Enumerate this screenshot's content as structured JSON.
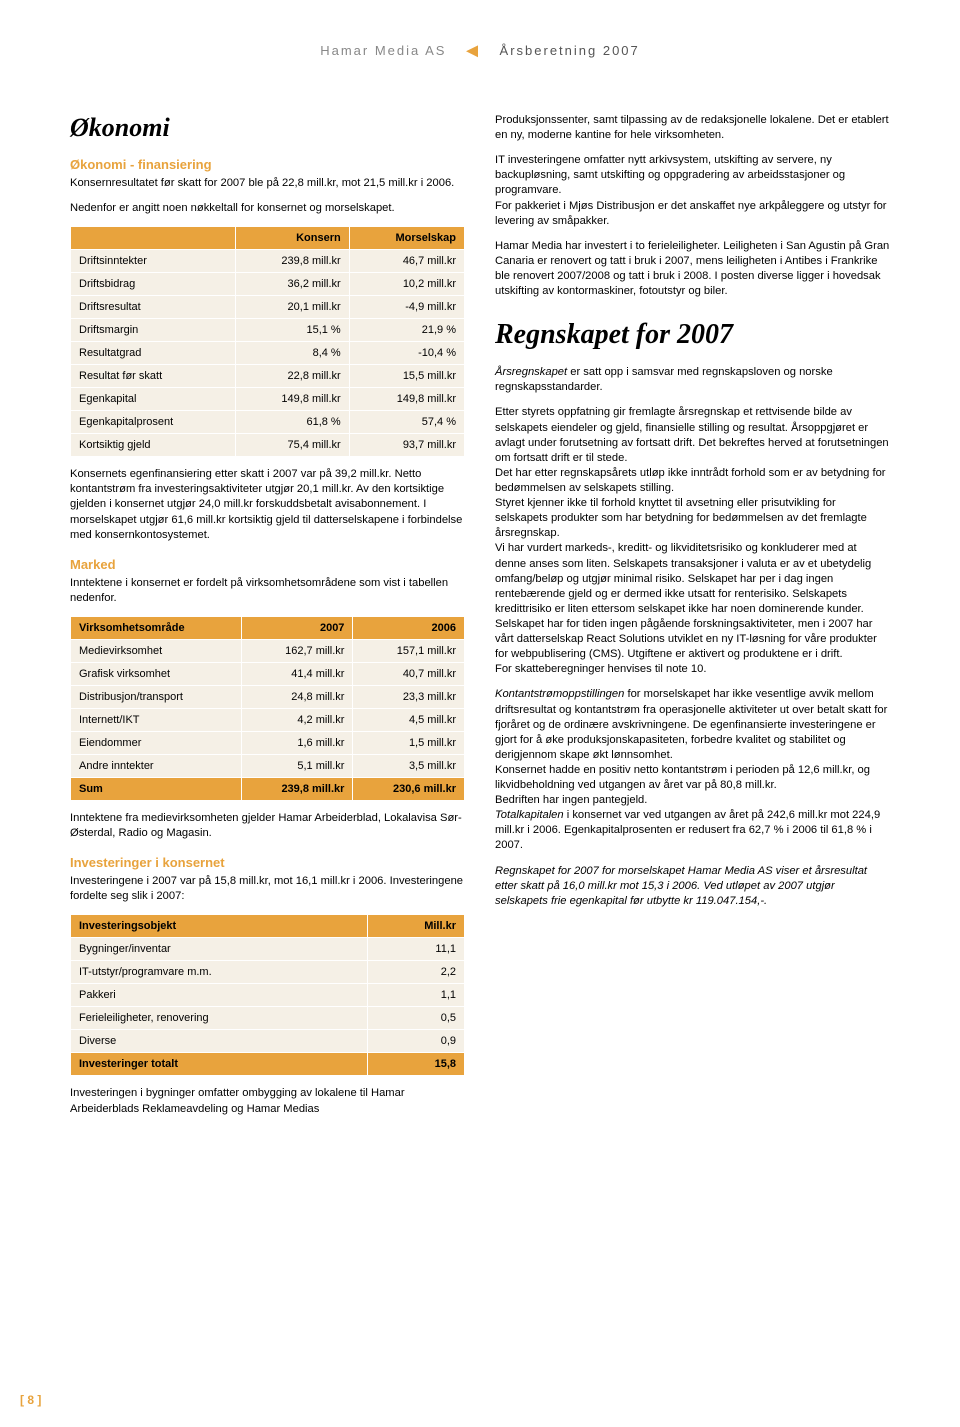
{
  "header": {
    "left": "Hamar Media AS",
    "right": "Årsberetning 2007"
  },
  "left": {
    "title": "Økonomi",
    "h_fin": "Økonomi - finansiering",
    "p1": "Konsernresultatet før skatt for 2007 ble på 22,8 mill.kr, mot 21,5 mill.kr i 2006.",
    "p2": "Nedenfor er angitt noen nøkkeltall for konsernet og morselskapet.",
    "tbl1": {
      "head": [
        "",
        "Konsern",
        "Morselskap"
      ],
      "rows": [
        [
          "Driftsinntekter",
          "239,8 mill.kr",
          "46,7 mill.kr"
        ],
        [
          "Driftsbidrag",
          "36,2 mill.kr",
          "10,2 mill.kr"
        ],
        [
          "Driftsresultat",
          "20,1 mill.kr",
          "-4,9 mill.kr"
        ],
        [
          "Driftsmargin",
          "15,1 %",
          "21,9 %"
        ],
        [
          "Resultatgrad",
          "8,4 %",
          "-10,4 %"
        ],
        [
          "Resultat før skatt",
          "22,8 mill.kr",
          "15,5 mill.kr"
        ],
        [
          "Egenkapital",
          "149,8 mill.kr",
          "149,8 mill.kr"
        ],
        [
          "Egenkapitalprosent",
          "61,8 %",
          "57,4 %"
        ],
        [
          "Kortsiktig gjeld",
          "75,4 mill.kr",
          "93,7 mill.kr"
        ]
      ]
    },
    "p3": "Konsernets egenfinansiering etter skatt i 2007 var på 39,2 mill.kr. Netto kontantstrøm fra investeringsaktiviteter utgjør 20,1 mill.kr. Av den kortsiktige gjelden i konsernet utgjør 24,0 mill.kr forskuddsbetalt avisabonnement. I morselskapet utgjør 61,6 mill.kr kortsiktig gjeld til datterselskapene i forbindelse med konsernkontosystemet.",
    "h_marked": "Marked",
    "p4": "Inntektene i konsernet er fordelt på virksomhetsområdene som vist i tabellen nedenfor.",
    "tbl2": {
      "head": [
        "Virksomhetsområde",
        "2007",
        "2006"
      ],
      "rows": [
        [
          "Medievirksomhet",
          "162,7 mill.kr",
          "157,1 mill.kr"
        ],
        [
          "Grafisk virksomhet",
          "41,4 mill.kr",
          "40,7 mill.kr"
        ],
        [
          "Distribusjon/transport",
          "24,8 mill.kr",
          "23,3 mill.kr"
        ],
        [
          "Internett/IKT",
          "4,2 mill.kr",
          "4,5 mill.kr"
        ],
        [
          "Eiendommer",
          "1,6 mill.kr",
          "1,5 mill.kr"
        ],
        [
          "Andre inntekter",
          "5,1 mill.kr",
          "3,5 mill.kr"
        ]
      ],
      "sum": [
        "Sum",
        "239,8 mill.kr",
        "230,6 mill.kr"
      ]
    },
    "p5": "Inntektene fra medievirksomheten gjelder Hamar Arbeiderblad, Lokalavisa Sør-Østerdal, Radio og Magasin.",
    "h_inv": "Investeringer i konsernet",
    "p6": "Investeringene i 2007 var på 15,8 mill.kr, mot 16,1 mill.kr i 2006. Investeringene fordelte seg slik i 2007:",
    "tbl3": {
      "head": [
        "Investeringsobjekt",
        "Mill.kr"
      ],
      "rows": [
        [
          "Bygninger/inventar",
          "11,1"
        ],
        [
          "IT-utstyr/programvare m.m.",
          "2,2"
        ],
        [
          "Pakkeri",
          "1,1"
        ],
        [
          "Ferieleiligheter, renovering",
          "0,5"
        ],
        [
          "Diverse",
          "0,9"
        ]
      ],
      "sum": [
        "Investeringer totalt",
        "15,8"
      ]
    },
    "p7": "Investeringen i bygninger omfatter ombygging av lokalene til Hamar Arbeiderblads Reklameavdeling og Hamar Medias"
  },
  "right": {
    "p1": "Produksjonssenter, samt tilpassing av de redaksjonelle lokalene. Det er etablert en ny, moderne kantine for hele virksomheten.",
    "p2": "IT investeringene omfatter nytt arkivsystem, utskifting av servere, ny backupløsning, samt utskifting og oppgradering av arbeidsstasjoner og programvare.",
    "p3": "For pakkeriet i Mjøs Distribusjon er det anskaffet nye arkpåleggere og utstyr for levering av småpakker.",
    "p4": "Hamar Media har investert i to ferieleiligheter. Leiligheten i San Agustin på Gran Canaria er renovert og tatt i bruk i 2007, mens leiligheten i Antibes i Frankrike ble renovert 2007/2008 og tatt i bruk i 2008. I posten diverse ligger i hovedsak utskifting av kontormaskiner, fotoutstyr og biler.",
    "h_regnskap": "Regnskapet for 2007",
    "p5a": "Årsregnskapet",
    "p5b": " er satt opp i samsvar med regnskapsloven og norske regnskapsstandarder.",
    "p6": "Etter styrets oppfatning gir fremlagte årsregnskap et rettvisende bilde av selskapets eiendeler og gjeld, finansielle stilling og resultat. Årsoppgjøret er avlagt under forutsetning av fortsatt drift. Det bekreftes herved at forutsetningen om fortsatt drift er til stede.",
    "p7": "Det har etter regnskapsårets utløp ikke inntrådt forhold som er av betydning for bedømmelsen av selskapets stilling.",
    "p8": "Styret kjenner ikke til forhold knyttet til avsetning eller prisutvikling for selskapets produkter som har betydning for bedømmelsen av det fremlagte årsregnskap.",
    "p9": "Vi har vurdert markeds-, kreditt- og likviditetsrisiko og konkluderer med at denne anses som liten. Selskapets transaksjoner i valuta er av et ubetydelig omfang/beløp og utgjør minimal risiko. Selskapet har per i dag ingen rentebærende gjeld og er dermed ikke utsatt for renterisiko. Selskapets kredittrisiko er liten ettersom selskapet ikke har noen dominerende kunder.",
    "p10": "Selskapet har for tiden ingen pågående forskningsaktiviteter, men i 2007 har vårt datterselskap React Solutions utviklet en ny IT-løsning for våre produkter for webpublisering (CMS). Utgiftene er aktivert og produktene er i drift.",
    "p11": "For skatteberegninger henvises til note 10.",
    "p12a": "Kontantstrømoppstillingen",
    "p12b": " for morselskapet har ikke vesentlige avvik mellom driftsresultat og kontantstrøm fra operasjonelle aktiviteter ut over betalt skatt for fjoråret og de ordinære avskrivningene. De egenfinansierte investeringene er gjort for å øke produksjonskapasiteten, forbedre kvalitet og stabilitet og derigjennom skape økt lønnsomhet.",
    "p13": "Konsernet hadde en positiv netto kontantstrøm i perioden på 12,6 mill.kr, og likvidbeholdning ved utgangen av året var på 80,8 mill.kr.",
    "p14": "Bedriften har ingen pantegjeld.",
    "p15a": "Totalkapitalen",
    "p15b": " i konsernet var ved utgangen av året på 242,6 mill.kr mot 224,9 mill.kr i 2006. Egenkapitalprosenten er redusert fra 62,7 % i 2006 til 61,8 % i 2007.",
    "p16": "Regnskapet for 2007 for morselskapet Hamar Media AS viser et årsresultat etter skatt på 16,0 mill.kr mot 15,3 i 2006. Ved utløpet av 2007 utgjør selskapets frie egenkapital før utbytte kr 119.047.154,-."
  },
  "page": "[ 8 ]"
}
